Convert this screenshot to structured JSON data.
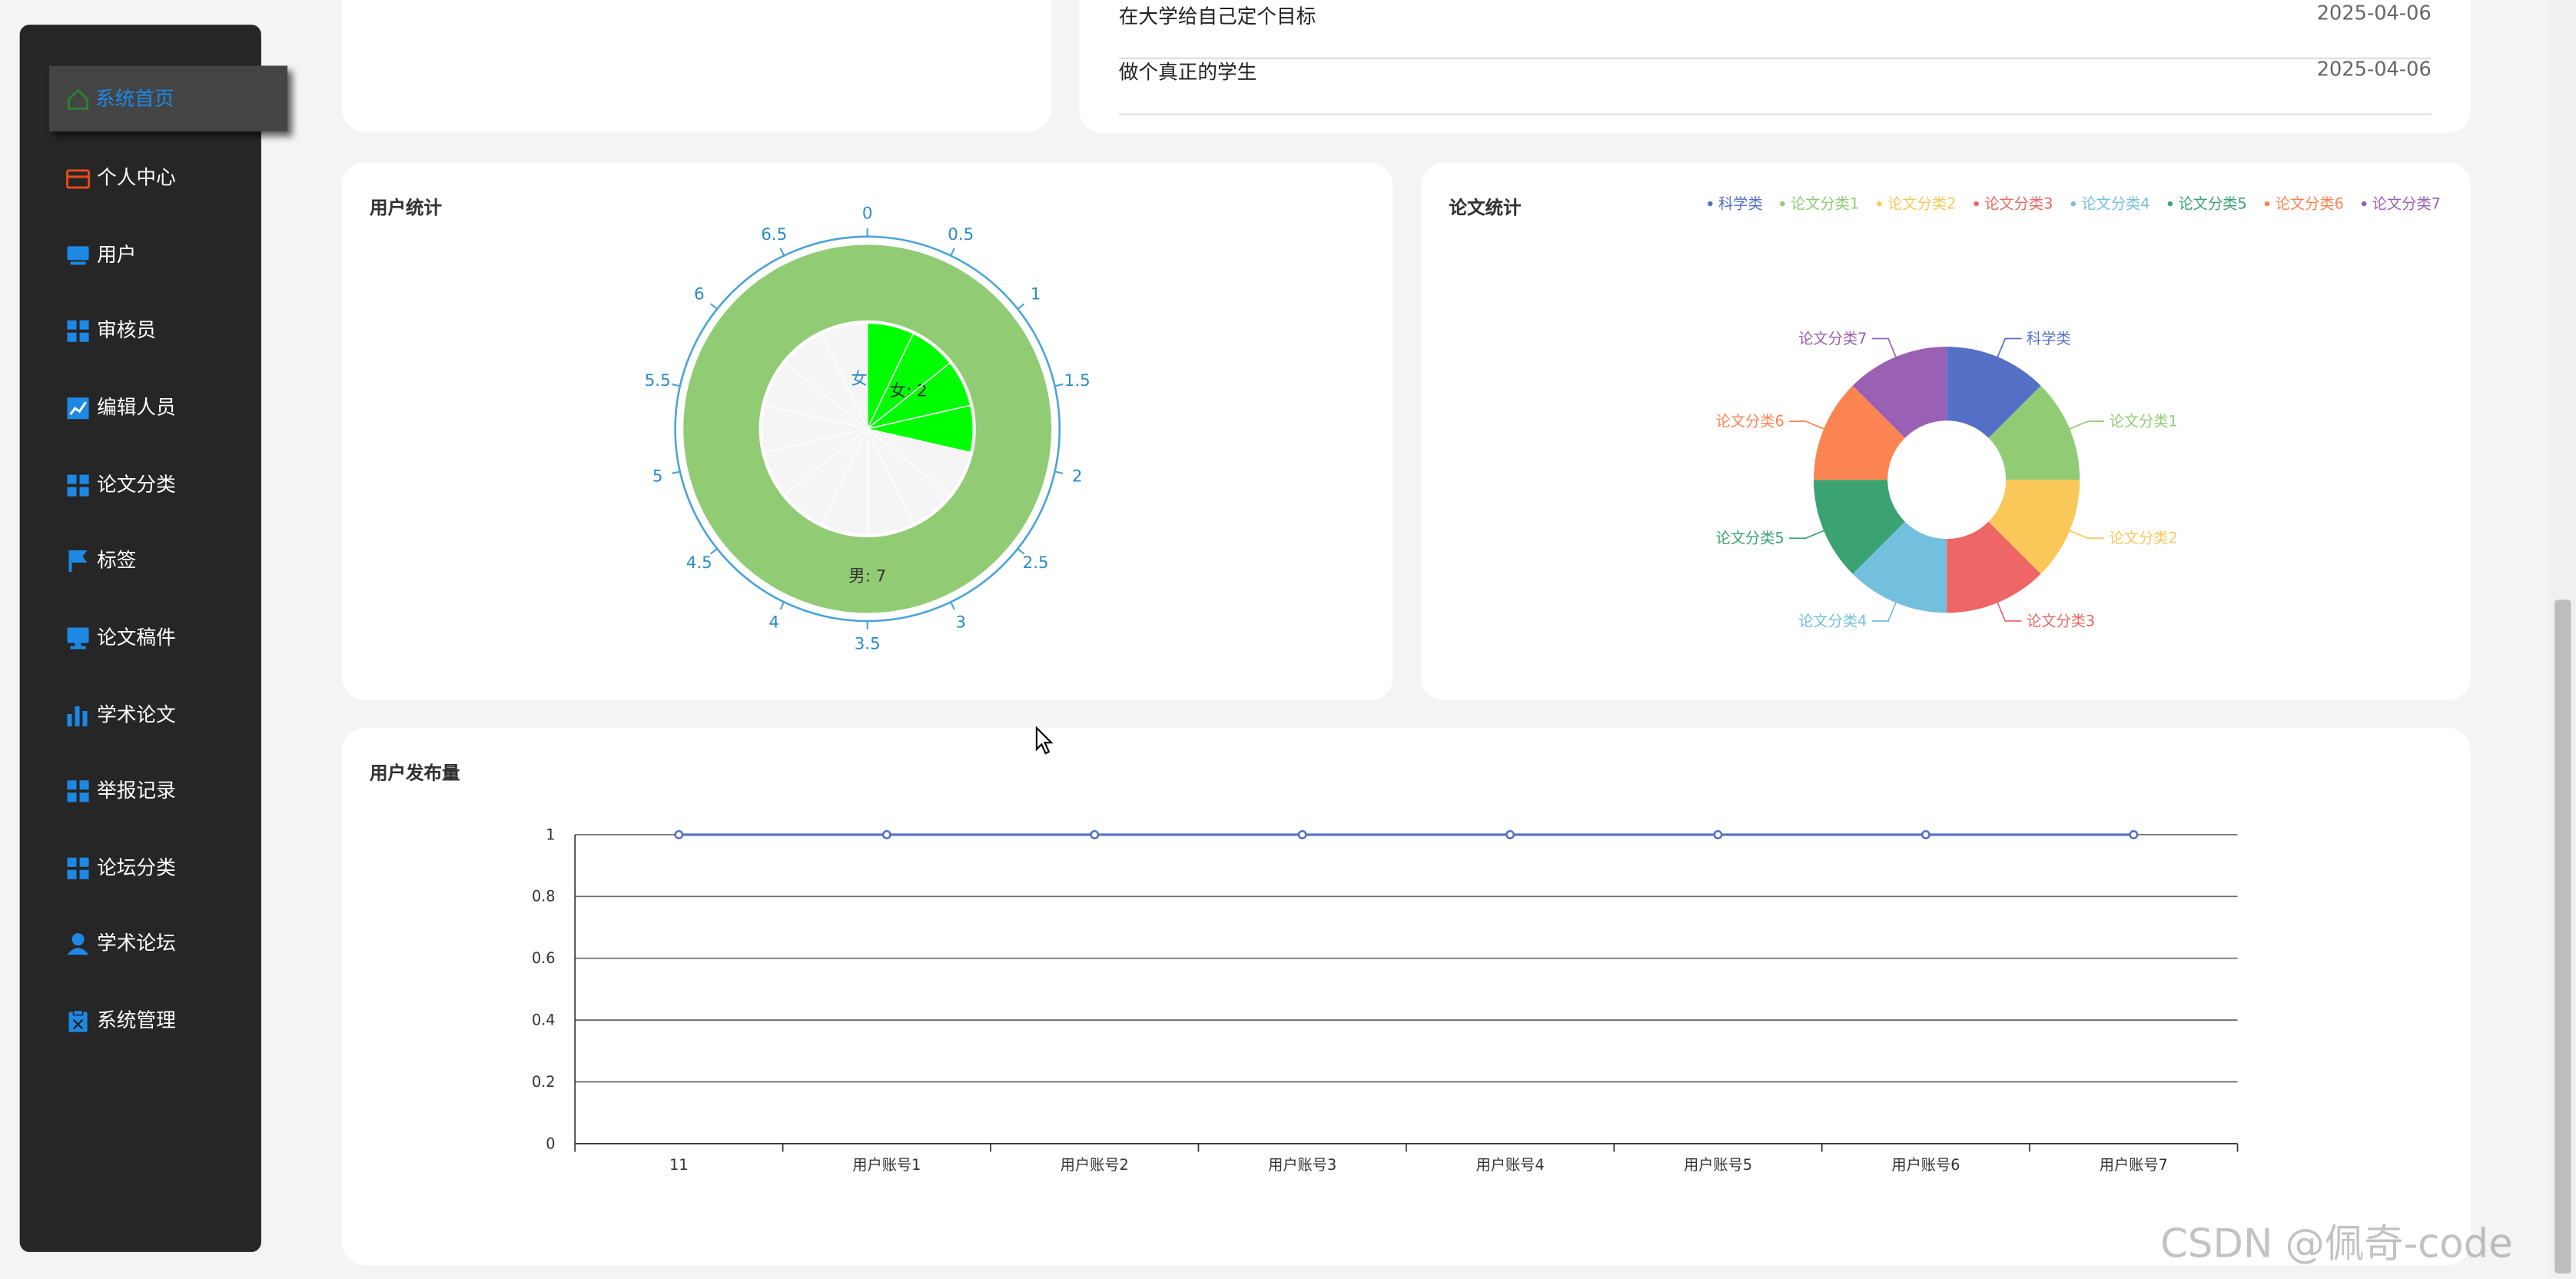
{
  "sidebar": {
    "items": [
      {
        "label": "系统首页",
        "icon": "home-icon",
        "active": true
      },
      {
        "label": "个人中心",
        "icon": "wallet-icon"
      },
      {
        "label": "用户",
        "icon": "monitor-icon"
      },
      {
        "label": "审核员",
        "icon": "grid-icon"
      },
      {
        "label": "编辑人员",
        "icon": "chart-line-icon"
      },
      {
        "label": "论文分类",
        "icon": "grid-icon"
      },
      {
        "label": "标签",
        "icon": "flag-icon"
      },
      {
        "label": "论文稿件",
        "icon": "desktop-icon"
      },
      {
        "label": "学术论文",
        "icon": "bar-chart-icon"
      },
      {
        "label": "举报记录",
        "icon": "grid-icon"
      },
      {
        "label": "论坛分类",
        "icon": "grid-icon"
      },
      {
        "label": "学术论坛",
        "icon": "user-icon"
      },
      {
        "label": "系统管理",
        "icon": "clipboard-icon"
      }
    ],
    "colors": {
      "bg": "#262626",
      "accent": "#1e88e5",
      "icon": "#1e88e5"
    }
  },
  "news": {
    "rows": [
      {
        "title": "在大学给自己定个目标",
        "date": "2025-04-06"
      },
      {
        "title": "做个真正的学生",
        "date": "2025-04-06"
      }
    ]
  },
  "user_stats": {
    "title": "用户统计",
    "chart_data": {
      "type": "polar-bar",
      "angle_axis_ticks": [
        "0",
        "0.5",
        "1",
        "1.5",
        "2",
        "2.5",
        "3",
        "3.5",
        "4",
        "4.5",
        "5",
        "5.5",
        "6",
        "6.5"
      ],
      "angle_max": 7,
      "categories": [
        "女",
        "男"
      ],
      "values": [
        2,
        7
      ],
      "data_labels": [
        "女: 2",
        "男: 7"
      ],
      "colors": [
        "#00ff00",
        "#91cc75"
      ]
    }
  },
  "paper_stats": {
    "title": "论文统计",
    "chart_data": {
      "type": "pie",
      "donut": true,
      "legend_placement": "top-right",
      "categories": [
        "科学类",
        "论文分类1",
        "论文分类2",
        "论文分类3",
        "论文分类4",
        "论文分类5",
        "论文分类6",
        "论文分类7"
      ],
      "values": [
        1,
        1,
        1,
        1,
        1,
        1,
        1,
        1
      ],
      "colors": [
        "#5470c6",
        "#91cc75",
        "#fac858",
        "#ee6666",
        "#73c0de",
        "#3ba272",
        "#fc8452",
        "#9a60b4"
      ]
    }
  },
  "user_posts": {
    "title": "用户发布量",
    "chart_data": {
      "type": "line",
      "categories": [
        "11",
        "用户账号1",
        "用户账号2",
        "用户账号3",
        "用户账号4",
        "用户账号5",
        "用户账号6",
        "用户账号7"
      ],
      "values": [
        1,
        1,
        1,
        1,
        1,
        1,
        1,
        1
      ],
      "ylim": [
        0,
        1
      ],
      "y_ticks": [
        "0",
        "0.2",
        "0.4",
        "0.6",
        "0.8",
        "1"
      ],
      "grid": true,
      "color": "#5470c6"
    }
  },
  "watermark": "CSDN @佩奇-code"
}
